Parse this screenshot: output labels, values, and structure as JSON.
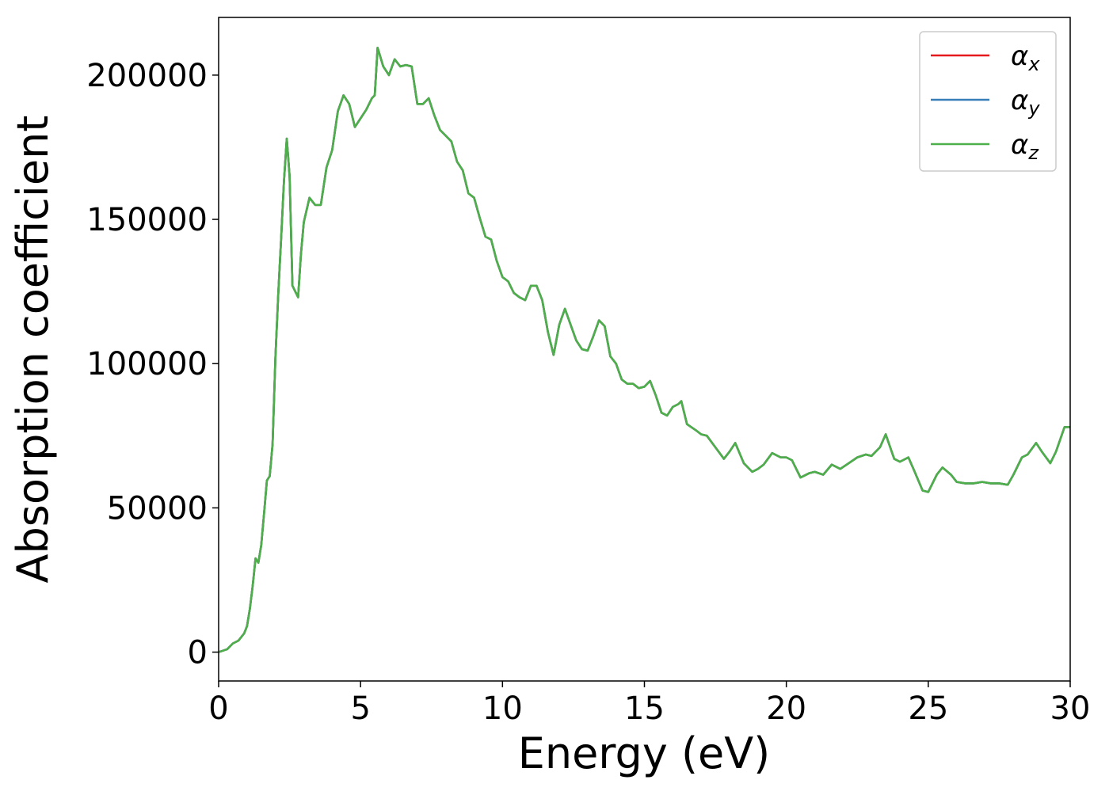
{
  "chart_data": {
    "type": "line",
    "xlabel": "Energy (eV)",
    "ylabel": "Absorption coefficient",
    "xlim": [
      0,
      30
    ],
    "ylim": [
      -10000,
      220000
    ],
    "xticks": [
      0,
      5,
      10,
      15,
      20,
      25,
      30
    ],
    "yticks": [
      0,
      50000,
      100000,
      150000,
      200000
    ],
    "legend": "upper right",
    "x": [
      0,
      0.3,
      0.5,
      0.7,
      0.9,
      1.0,
      1.1,
      1.2,
      1.3,
      1.4,
      1.5,
      1.6,
      1.7,
      1.8,
      1.9,
      2.0,
      2.1,
      2.2,
      2.3,
      2.4,
      2.5,
      2.6,
      2.7,
      2.8,
      2.9,
      3.0,
      3.2,
      3.4,
      3.6,
      3.8,
      4.0,
      4.2,
      4.4,
      4.6,
      4.8,
      5.0,
      5.2,
      5.4,
      5.5,
      5.6,
      5.8,
      6.0,
      6.2,
      6.4,
      6.6,
      6.8,
      7.0,
      7.2,
      7.4,
      7.6,
      7.8,
      8.0,
      8.2,
      8.4,
      8.6,
      8.8,
      9.0,
      9.2,
      9.4,
      9.6,
      9.8,
      10.0,
      10.2,
      10.4,
      10.6,
      10.8,
      11.0,
      11.2,
      11.4,
      11.6,
      11.8,
      12.0,
      12.2,
      12.4,
      12.6,
      12.8,
      13.0,
      13.2,
      13.4,
      13.6,
      13.8,
      14.0,
      14.2,
      14.4,
      14.6,
      14.8,
      15.0,
      15.2,
      15.4,
      15.6,
      15.8,
      16.0,
      16.2,
      16.3,
      16.5,
      16.8,
      17.0,
      17.2,
      17.5,
      17.8,
      18.0,
      18.2,
      18.5,
      18.8,
      19.0,
      19.2,
      19.5,
      19.8,
      20.0,
      20.2,
      20.5,
      20.8,
      21.0,
      21.3,
      21.6,
      21.9,
      22.2,
      22.5,
      22.8,
      23.0,
      23.3,
      23.5,
      23.8,
      24.0,
      24.3,
      24.5,
      24.8,
      25.0,
      25.3,
      25.5,
      25.8,
      26.0,
      26.3,
      26.6,
      26.9,
      27.2,
      27.5,
      27.8,
      28.0,
      28.3,
      28.5,
      28.8,
      29.0,
      29.3,
      29.5,
      29.8,
      30.0
    ],
    "series": [
      {
        "name": "αx",
        "color": "#e41a1c",
        "values": [
          0,
          1000,
          3000,
          4000,
          6500,
          9000,
          15000,
          23000,
          32500,
          31000,
          37000,
          48000,
          59500,
          61000,
          72000,
          102000,
          124000,
          143000,
          163000,
          178000,
          165000,
          127000,
          125000,
          123000,
          138000,
          149000,
          157500,
          155000,
          155000,
          168000,
          174000,
          187500,
          193000,
          190000,
          182000,
          185000,
          188000,
          192000,
          193000,
          209500,
          203000,
          200000,
          205500,
          203000,
          203500,
          203000,
          190000,
          190000,
          192000,
          186000,
          181000,
          179000,
          177000,
          170000,
          167000,
          159000,
          157500,
          150500,
          144000,
          143000,
          135500,
          130000,
          128500,
          124500,
          123000,
          122000,
          127000,
          127000,
          122000,
          111000,
          103000,
          113500,
          119000,
          113500,
          108000,
          105000,
          104500,
          109500,
          115000,
          113000,
          102500,
          100000,
          94500,
          93000,
          93000,
          91500,
          92000,
          94000,
          89000,
          83000,
          82000,
          85000,
          86000,
          87000,
          79000,
          77000,
          75500,
          75000,
          71000,
          67000,
          69500,
          72500,
          65500,
          62500,
          63500,
          65000,
          69000,
          67500,
          67500,
          66500,
          60500,
          62000,
          62500,
          61500,
          65000,
          63500,
          65500,
          67500,
          68500,
          68000,
          71000,
          75500,
          67000,
          66000,
          67500,
          63000,
          56000,
          55500,
          61500,
          64000,
          61500,
          59000,
          58500,
          58500,
          59000,
          58500,
          58500,
          58000,
          61500,
          67500,
          68500,
          72500,
          69500,
          65500,
          69500,
          78000,
          78000
        ]
      },
      {
        "name": "αy",
        "color": "#377eb8",
        "values": [
          0,
          1000,
          3000,
          4000,
          6500,
          9000,
          15000,
          23000,
          32500,
          31000,
          37000,
          48000,
          59500,
          61000,
          72000,
          102000,
          124000,
          143000,
          163000,
          178000,
          165000,
          127000,
          125000,
          123000,
          138000,
          149000,
          157500,
          155000,
          155000,
          168000,
          174000,
          187500,
          193000,
          190000,
          182000,
          185000,
          188000,
          192000,
          193000,
          209500,
          203000,
          200000,
          205500,
          203000,
          203500,
          203000,
          190000,
          190000,
          192000,
          186000,
          181000,
          179000,
          177000,
          170000,
          167000,
          159000,
          157500,
          150500,
          144000,
          143000,
          135500,
          130000,
          128500,
          124500,
          123000,
          122000,
          127000,
          127000,
          122000,
          111000,
          103000,
          113500,
          119000,
          113500,
          108000,
          105000,
          104500,
          109500,
          115000,
          113000,
          102500,
          100000,
          94500,
          93000,
          93000,
          91500,
          92000,
          94000,
          89000,
          83000,
          82000,
          85000,
          86000,
          87000,
          79000,
          77000,
          75500,
          75000,
          71000,
          67000,
          69500,
          72500,
          65500,
          62500,
          63500,
          65000,
          69000,
          67500,
          67500,
          66500,
          60500,
          62000,
          62500,
          61500,
          65000,
          63500,
          65500,
          67500,
          68500,
          68000,
          71000,
          75500,
          67000,
          66000,
          67500,
          63000,
          56000,
          55500,
          61500,
          64000,
          61500,
          59000,
          58500,
          58500,
          59000,
          58500,
          58500,
          58000,
          61500,
          67500,
          68500,
          72500,
          69500,
          65500,
          69500,
          78000,
          78000
        ]
      },
      {
        "name": "αz",
        "color": "#4daf4a",
        "values": [
          0,
          1000,
          3000,
          4000,
          6500,
          9000,
          15000,
          23000,
          32500,
          31000,
          37000,
          48000,
          59500,
          61000,
          72000,
          102000,
          124000,
          143000,
          163000,
          178000,
          165000,
          127000,
          125000,
          123000,
          138000,
          149000,
          157500,
          155000,
          155000,
          168000,
          174000,
          187500,
          193000,
          190000,
          182000,
          185000,
          188000,
          192000,
          193000,
          209500,
          203000,
          200000,
          205500,
          203000,
          203500,
          203000,
          190000,
          190000,
          192000,
          186000,
          181000,
          179000,
          177000,
          170000,
          167000,
          159000,
          157500,
          150500,
          144000,
          143000,
          135500,
          130000,
          128500,
          124500,
          123000,
          122000,
          127000,
          127000,
          122000,
          111000,
          103000,
          113500,
          119000,
          113500,
          108000,
          105000,
          104500,
          109500,
          115000,
          113000,
          102500,
          100000,
          94500,
          93000,
          93000,
          91500,
          92000,
          94000,
          89000,
          83000,
          82000,
          85000,
          86000,
          87000,
          79000,
          77000,
          75500,
          75000,
          71000,
          67000,
          69500,
          72500,
          65500,
          62500,
          63500,
          65000,
          69000,
          67500,
          67500,
          66500,
          60500,
          62000,
          62500,
          61500,
          65000,
          63500,
          65500,
          67500,
          68500,
          68000,
          71000,
          75500,
          67000,
          66000,
          67500,
          63000,
          56000,
          55500,
          61500,
          64000,
          61500,
          59000,
          58500,
          58500,
          59000,
          58500,
          58500,
          58000,
          61500,
          67500,
          68500,
          72500,
          69500,
          65500,
          69500,
          78000,
          78000
        ]
      }
    ]
  }
}
